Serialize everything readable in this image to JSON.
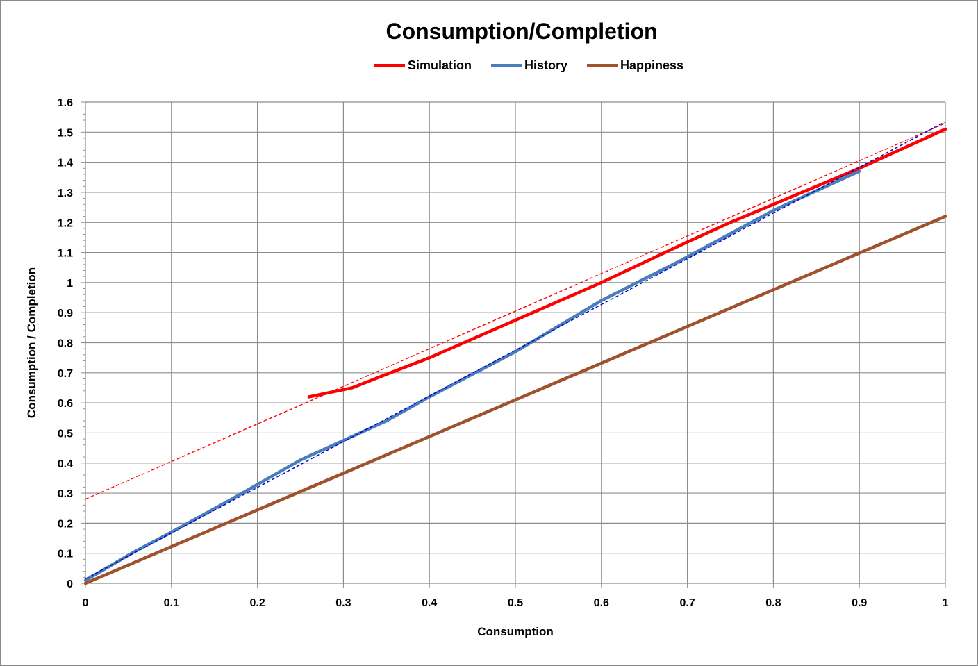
{
  "chart_data": {
    "type": "line",
    "title": "Consumption/Completion",
    "xlabel": "Consumption",
    "ylabel": "Consumption / Completion",
    "xlim": [
      0,
      1
    ],
    "ylim": [
      0,
      1.6
    ],
    "grid": true,
    "legend_position": "top",
    "x_ticks": [
      "0",
      "0.1",
      "0.2",
      "0.3",
      "0.4",
      "0.5",
      "0.6",
      "0.7",
      "0.8",
      "0.9",
      "1"
    ],
    "y_ticks": [
      "0",
      "0.1",
      "0.2",
      "0.3",
      "0.4",
      "0.5",
      "0.6",
      "0.7",
      "0.8",
      "0.9",
      "1",
      "1.1",
      "1.2",
      "1.3",
      "1.4",
      "1.5",
      "1.6"
    ],
    "series": [
      {
        "name": "Simulation",
        "color": "#ff0000",
        "x": [
          0.26,
          0.31,
          0.35,
          0.4,
          0.5,
          0.6,
          0.7,
          0.75,
          0.8,
          0.9,
          1.0
        ],
        "y": [
          0.62,
          0.65,
          0.695,
          0.75,
          0.875,
          1.0,
          1.135,
          1.2,
          1.26,
          1.38,
          1.51
        ]
      },
      {
        "name": "History",
        "color": "#4a7ebb",
        "x": [
          0,
          0.06,
          0.1,
          0.17,
          0.25,
          0.35,
          0.4,
          0.5,
          0.6,
          0.69,
          0.8,
          0.9
        ],
        "y": [
          0.01,
          0.11,
          0.17,
          0.28,
          0.41,
          0.54,
          0.62,
          0.77,
          0.94,
          1.07,
          1.24,
          1.37
        ]
      },
      {
        "name": "Happiness",
        "color": "#a0522d",
        "x": [
          0,
          1
        ],
        "y": [
          0.0,
          1.22
        ]
      }
    ],
    "trendlines": [
      {
        "of": "Simulation",
        "color": "#ff0000",
        "style": "dashed",
        "x": [
          0,
          1
        ],
        "y": [
          0.28,
          1.53
        ]
      },
      {
        "of": "History",
        "color": "#0000cc",
        "style": "dashed",
        "x": [
          0,
          1
        ],
        "y": [
          0.015,
          1.535
        ]
      }
    ]
  }
}
